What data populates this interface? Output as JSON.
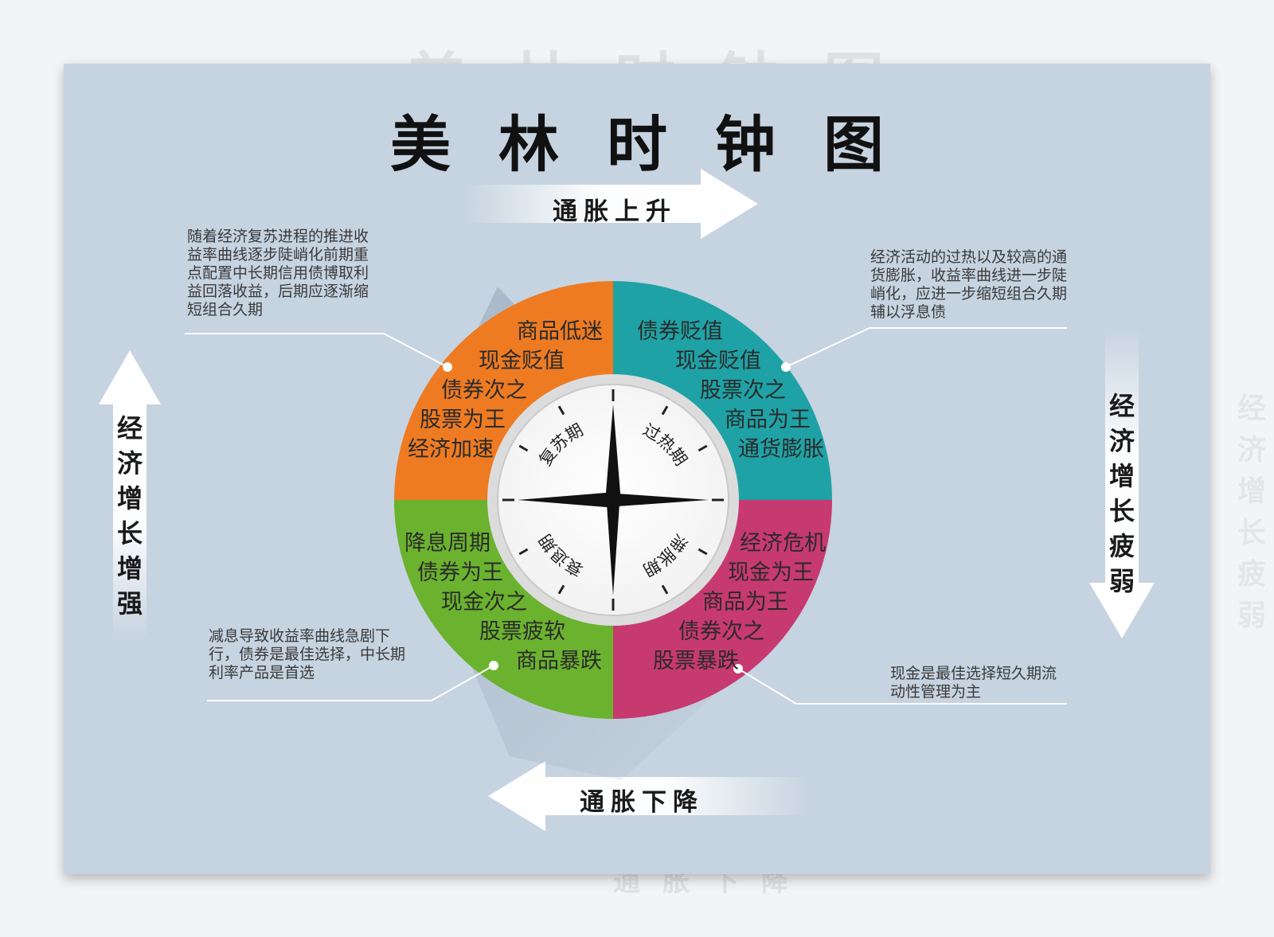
{
  "title": "美林时钟图",
  "axes": {
    "top": "通胀上升",
    "bottom": "通胀下降",
    "left": "经济增长增强",
    "right": "经济增长疲弱"
  },
  "phases": {
    "recovery": "复苏期",
    "overheat": "过热期",
    "stagflation": "滞胀期",
    "recession": "衰退期"
  },
  "quadrants": {
    "top_left": [
      "商品低迷",
      "现金贬值",
      "债券次之",
      "股票为王",
      "经济加速"
    ],
    "top_right": [
      "债券贬值",
      "现金贬值",
      "股票次之",
      "商品为王",
      "通货膨胀"
    ],
    "bottom_left": [
      "降息周期",
      "债券为王",
      "现金次之",
      "股票疲软",
      "商品暴跌"
    ],
    "bottom_right": [
      "经济危机",
      "现金为王",
      "商品为王",
      "债券次之",
      "股票暴跌"
    ]
  },
  "notes": {
    "top_left": "随着经济复苏进程的推进收益率曲线逐步陡峭化前期重点配置中长期信用债博取利益回落收益，后期应逐渐缩短组合久期",
    "top_right": "经济活动的过热以及较高的通货膨胀，收益率曲线进一步陡峭化，应进一步缩短组合久期辅以浮息债",
    "bottom_left": "减息导致收益率曲线急剧下行，债券是最佳选择，中长期利率产品是首选",
    "bottom_right": "现金是最佳选择短久期流动性管理为主"
  },
  "colors": {
    "background": "#c6d3e0",
    "orange": "#ee7b22",
    "teal": "#1fa2a5",
    "green": "#6bb22f",
    "magenta": "#c73a6f"
  }
}
